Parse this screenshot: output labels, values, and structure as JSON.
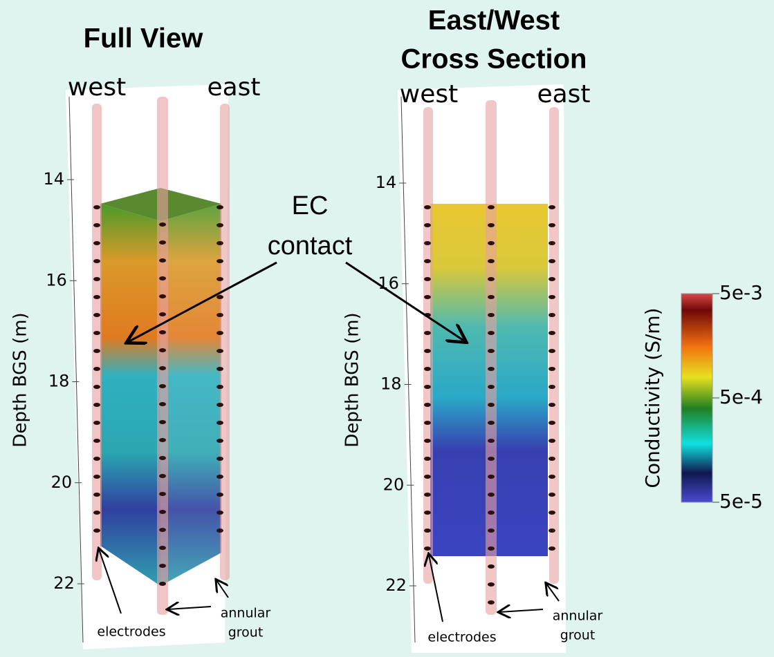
{
  "panels": [
    {
      "title_lines": [
        "Full View"
      ],
      "west": "west",
      "east": "east",
      "y_label": "Depth BGS (m)",
      "yticks": [
        14,
        16,
        18,
        20,
        22
      ],
      "electrodes_label": "electrodes",
      "grout_lines": [
        "annular",
        "grout"
      ]
    },
    {
      "title_lines": [
        "East/West",
        "Cross Section"
      ],
      "west": "west",
      "east": "east",
      "y_label": "Depth BGS (m)",
      "yticks": [
        14,
        16,
        18,
        20,
        22
      ],
      "electrodes_label": "electrodes",
      "grout_lines": [
        "annular",
        "grout"
      ]
    }
  ],
  "annotation_lines": [
    "EC",
    "contact"
  ],
  "colorbar": {
    "label": "Conductivity (S/m)",
    "scale": "log",
    "ticks": [
      {
        "value": 0.005,
        "label": "5e-3"
      },
      {
        "value": 0.0005,
        "label": "5e-4"
      },
      {
        "value": 5e-05,
        "label": "5e-5"
      }
    ]
  }
}
